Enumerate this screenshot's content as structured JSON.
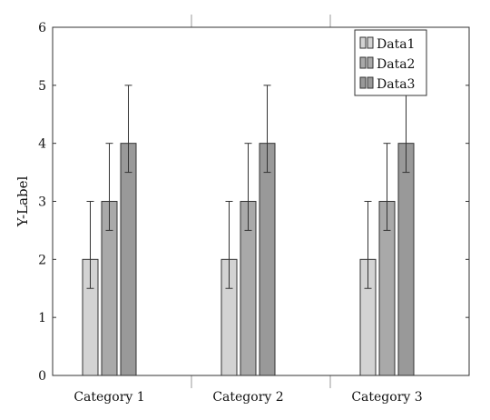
{
  "chart_data": {
    "type": "bar",
    "title": "",
    "xlabel": "",
    "ylabel": "Y-Label",
    "ylim": [
      0,
      6
    ],
    "yticks": [
      0,
      1,
      2,
      3,
      4,
      5,
      6
    ],
    "grid": false,
    "legend_position": "top-right",
    "categories": [
      "Category 1",
      "Category 2",
      "Category 3"
    ],
    "series": [
      {
        "name": "Data1",
        "values": [
          2,
          2,
          2
        ],
        "error_low": [
          1.5,
          1.5,
          1.5
        ],
        "error_high": [
          3,
          3,
          3
        ],
        "color": "#d3d3d3"
      },
      {
        "name": "Data2",
        "values": [
          3,
          3,
          3
        ],
        "error_low": [
          2.5,
          2.5,
          2.5
        ],
        "error_high": [
          4,
          4,
          4
        ],
        "color": "#a9a9a9"
      },
      {
        "name": "Data3",
        "values": [
          4,
          4,
          4
        ],
        "error_low": [
          3.5,
          3.5,
          3.5
        ],
        "error_high": [
          5,
          5,
          5
        ],
        "color": "#999999"
      }
    ],
    "stroke_color": "#333333"
  }
}
